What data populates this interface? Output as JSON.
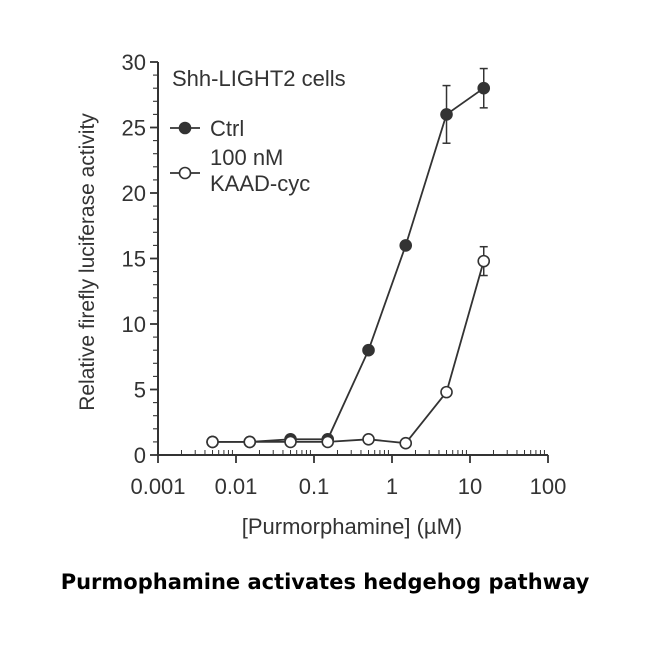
{
  "caption": "Purmophamine activates hedgehog pathway",
  "chart_data": {
    "type": "line",
    "title": "Shh-LIGHT2 cells",
    "xlabel": "[Purmorphamine] (µM)",
    "ylabel": "Relative firefly luciferase activity",
    "xscale": "log",
    "xlim": [
      0.001,
      100
    ],
    "ylim": [
      0,
      30
    ],
    "x_tick_labels": [
      "0.001",
      "0.01",
      "0.1",
      "1",
      "10",
      "100"
    ],
    "x_tick_values": [
      0.001,
      0.01,
      0.1,
      1,
      10,
      100
    ],
    "y_tick_labels": [
      "0",
      "5",
      "10",
      "15",
      "20",
      "25",
      "30"
    ],
    "y_tick_values": [
      0,
      5,
      10,
      15,
      20,
      25,
      30
    ],
    "legend_position": "top-left",
    "series": [
      {
        "name": "Ctrl",
        "marker": "filled-circle",
        "x": [
          0.005,
          0.015,
          0.05,
          0.15,
          0.5,
          1.5,
          5,
          15
        ],
        "y": [
          1.0,
          1.0,
          1.2,
          1.2,
          8.0,
          16.0,
          26.0,
          28.0
        ],
        "err": [
          0,
          0,
          0.2,
          0.3,
          0,
          0,
          2.2,
          1.5
        ]
      },
      {
        "name": "100 nM KAAD-cyc",
        "name_lines": [
          "100 nM",
          "KAAD-cyc"
        ],
        "marker": "open-circle",
        "x": [
          0.005,
          0.015,
          0.05,
          0.15,
          0.5,
          1.5,
          5,
          15
        ],
        "y": [
          1.0,
          1.0,
          1.0,
          1.0,
          1.2,
          0.9,
          4.8,
          14.8
        ],
        "err": [
          0,
          0,
          0,
          0,
          0,
          0,
          0,
          1.1
        ]
      }
    ]
  }
}
